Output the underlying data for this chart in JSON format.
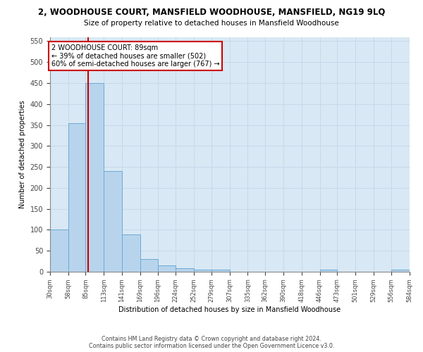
{
  "title": "2, WOODHOUSE COURT, MANSFIELD WOODHOUSE, MANSFIELD, NG19 9LQ",
  "subtitle": "Size of property relative to detached houses in Mansfield Woodhouse",
  "xlabel": "Distribution of detached houses by size in Mansfield Woodhouse",
  "ylabel": "Number of detached properties",
  "footer_line1": "Contains HM Land Registry data © Crown copyright and database right 2024.",
  "footer_line2": "Contains public sector information licensed under the Open Government Licence v3.0.",
  "annotation_line1": "2 WOODHOUSE COURT: 89sqm",
  "annotation_line2": "← 39% of detached houses are smaller (502)",
  "annotation_line3": "60% of semi-detached houses are larger (767) →",
  "bar_color": "#b8d4ec",
  "bar_edge_color": "#6aaad4",
  "grid_color": "#c8d8ec",
  "background_color": "#d8e8f4",
  "marker_line_color": "#cc0000",
  "annotation_box_color": "#cc0000",
  "marker_sqm": 89,
  "bin_edges": [
    30,
    58,
    85,
    113,
    141,
    169,
    196,
    224,
    252,
    279,
    307,
    335,
    362,
    390,
    418,
    446,
    473,
    501,
    529,
    556,
    584
  ],
  "bin_counts": [
    100,
    355,
    450,
    240,
    88,
    30,
    15,
    8,
    4,
    5,
    0,
    0,
    0,
    0,
    0,
    5,
    0,
    0,
    0,
    5
  ],
  "ylim": [
    0,
    560
  ],
  "yticks": [
    0,
    50,
    100,
    150,
    200,
    250,
    300,
    350,
    400,
    450,
    500,
    550
  ]
}
